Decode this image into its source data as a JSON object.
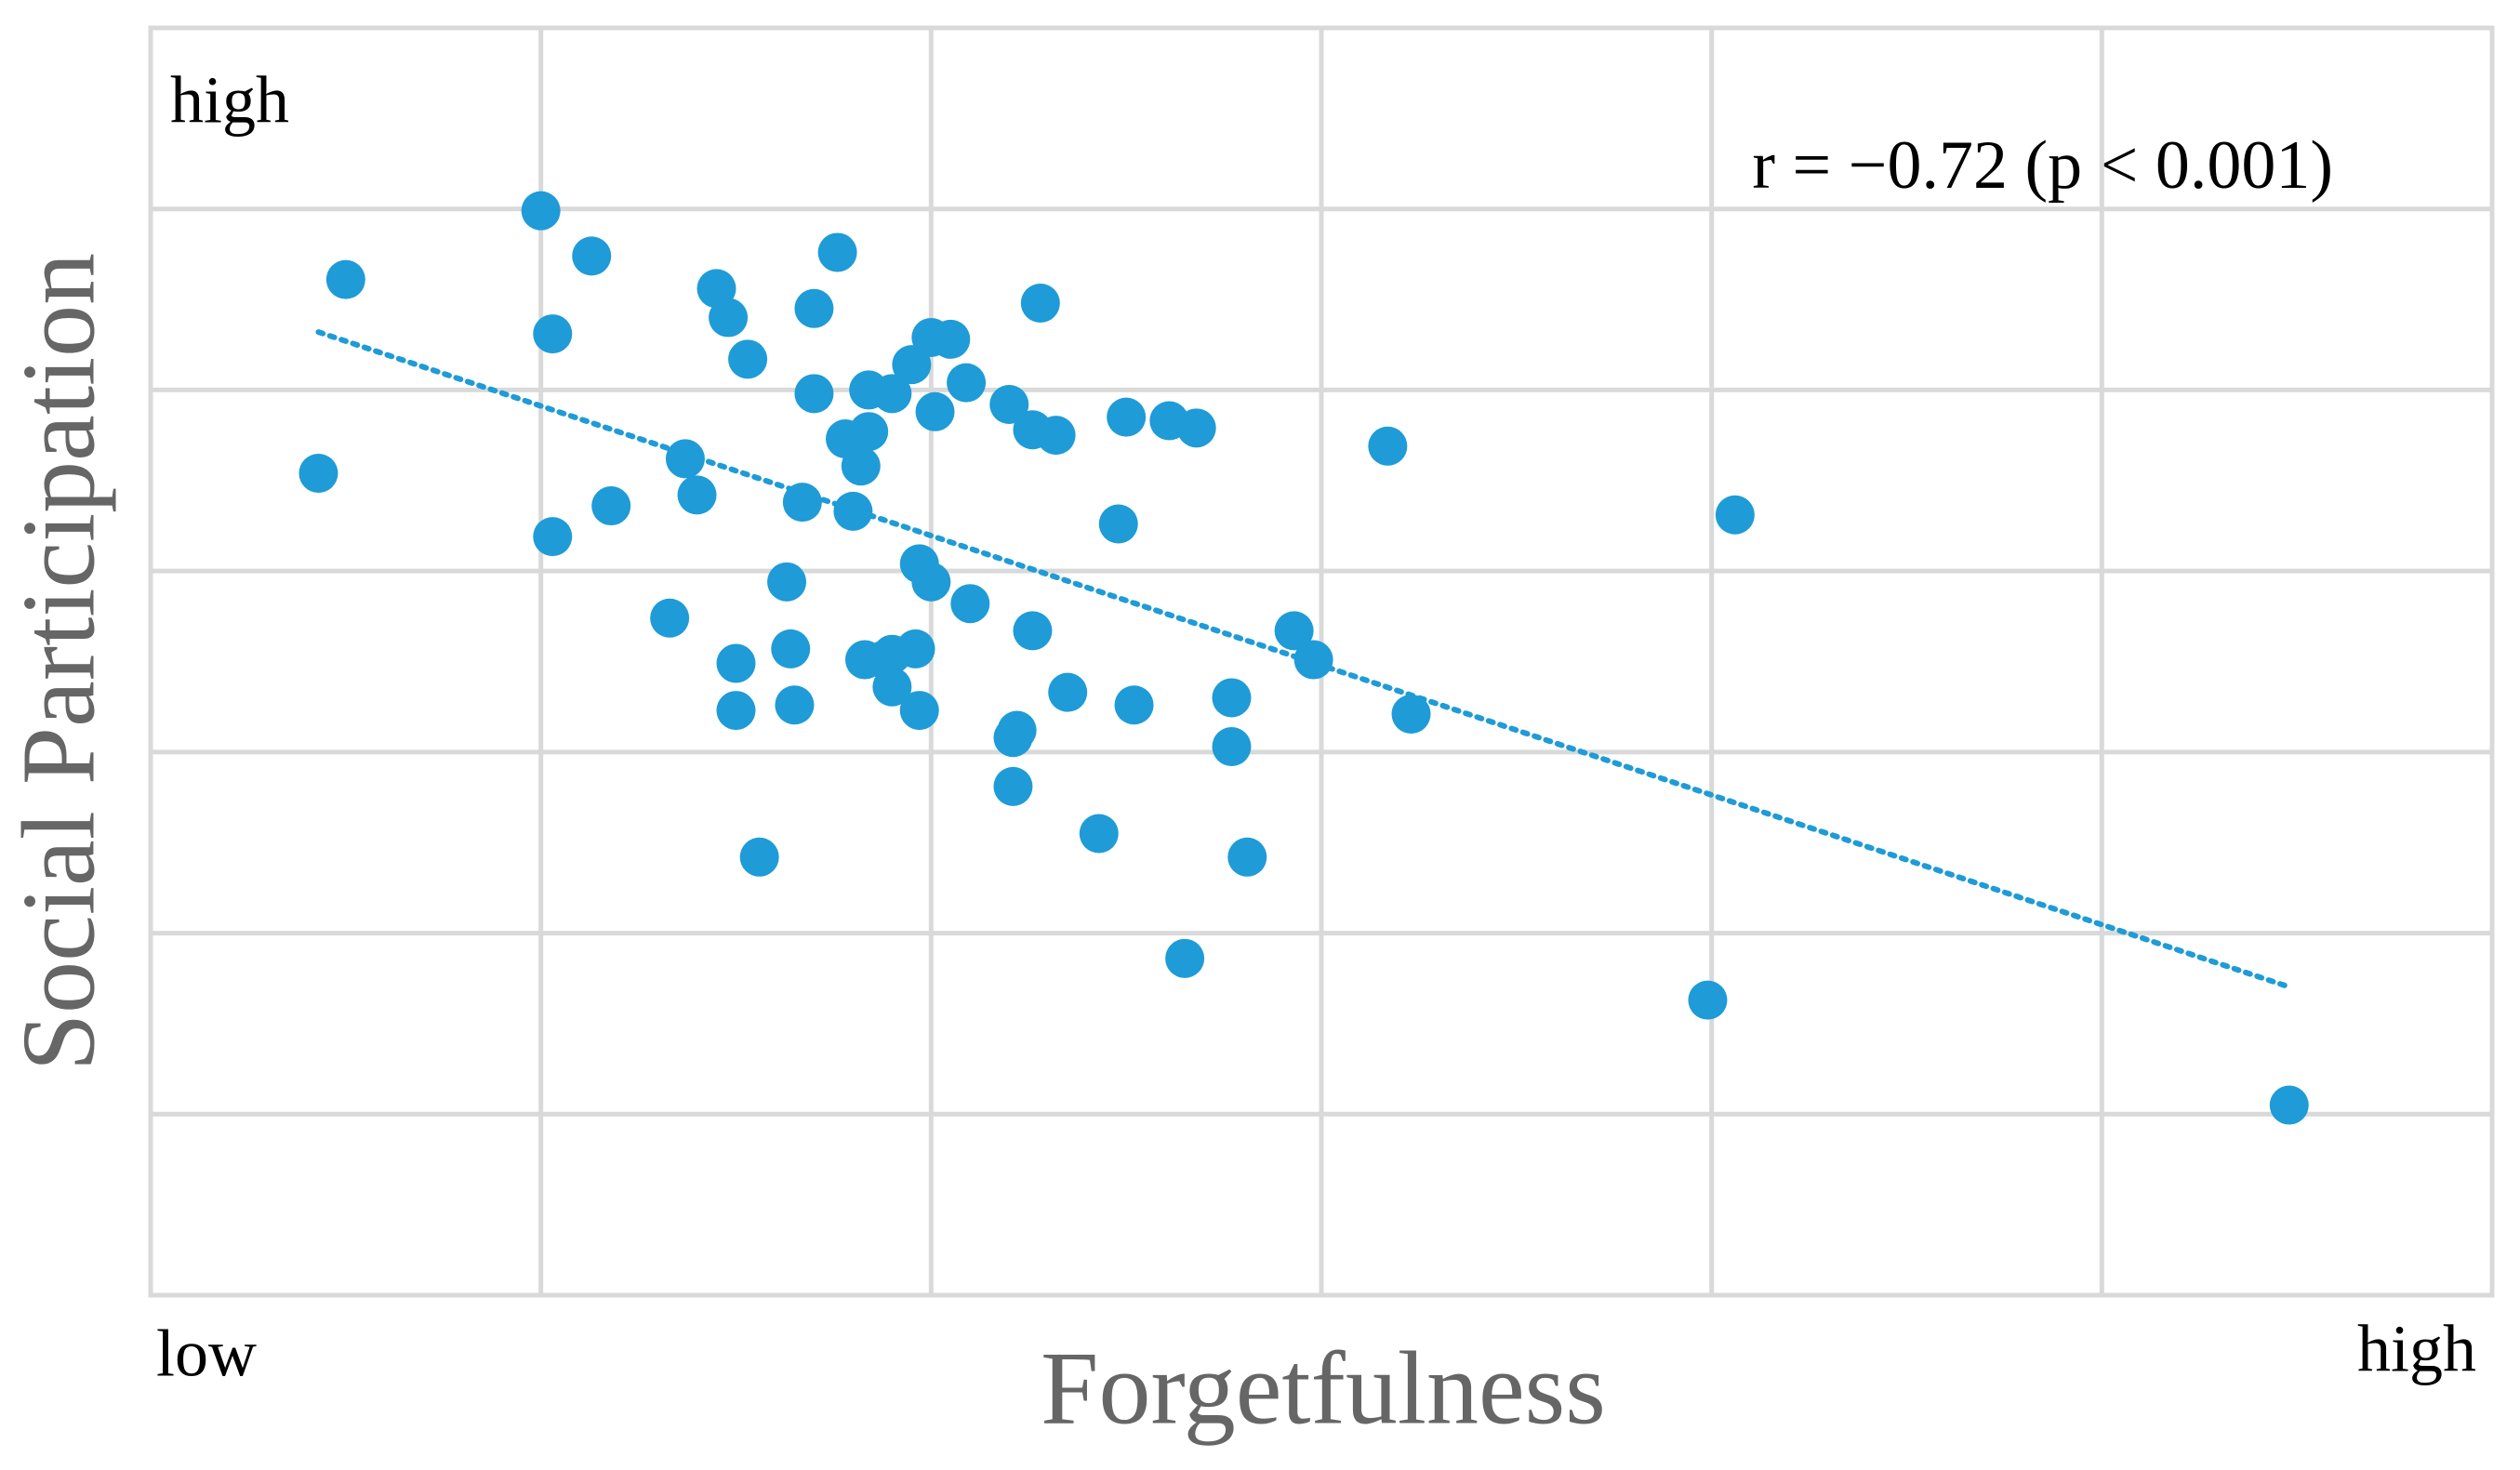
{
  "chart_data": {
    "type": "scatter",
    "x_label": "Forgetfulness",
    "y_label": "Social Participation",
    "x_low_label": "low",
    "x_high_label": "high",
    "y_high_label": "high",
    "annotation": "r = −0.72 (p < 0.001)",
    "color": "#1f9bd7",
    "grid": true,
    "xlim": [
      0,
      6
    ],
    "ylim": [
      0,
      7
    ],
    "xticks": [
      1,
      2,
      3,
      4,
      5
    ],
    "yticks": [
      1,
      2,
      3,
      4,
      5,
      6
    ],
    "x": [
      0.5,
      0.43,
      1.0,
      1.13,
      1.03,
      1.03,
      1.18,
      1.37,
      1.4,
      1.33,
      1.45,
      1.48,
      1.53,
      1.5,
      1.5,
      1.56,
      1.63,
      1.64,
      1.65,
      1.67,
      1.7,
      1.7,
      1.76,
      1.78,
      1.8,
      1.82,
      1.84,
      1.84,
      1.9,
      1.83,
      1.88,
      1.9,
      1.9,
      1.96,
      1.97,
      1.95,
      2.0,
      2.05,
      1.97,
      2.0,
      2.01,
      2.09,
      2.1,
      2.2,
      2.21,
      2.22,
      2.21,
      2.26,
      2.32,
      2.28,
      2.26,
      2.35,
      2.43,
      2.48,
      2.5,
      2.52,
      2.61,
      2.68,
      2.65,
      2.77,
      2.77,
      2.81,
      2.93,
      2.98,
      3.17,
      3.23,
      4.06,
      3.99,
      5.48
    ],
    "values": [
      5.61,
      4.54,
      5.99,
      5.74,
      5.31,
      4.19,
      4.36,
      4.62,
      4.42,
      3.74,
      5.56,
      5.4,
      5.17,
      3.49,
      3.23,
      2.42,
      3.94,
      3.57,
      3.26,
      4.38,
      5.45,
      4.98,
      5.76,
      4.73,
      4.33,
      4.58,
      5.0,
      4.77,
      4.98,
      3.51,
      3.51,
      3.54,
      3.36,
      3.57,
      3.23,
      5.14,
      5.29,
      5.28,
      4.04,
      3.94,
      4.88,
      5.04,
      3.82,
      4.92,
      3.08,
      3.12,
      2.81,
      4.78,
      4.75,
      5.48,
      3.67,
      3.33,
      2.55,
      4.26,
      4.85,
      3.26,
      4.83,
      4.79,
      1.86,
      3.3,
      3.03,
      2.42,
      3.67,
      3.51,
      4.69,
      3.21,
      4.31,
      1.63,
      1.05
    ],
    "trendline": {
      "x": [
        0.43,
        5.47
      ],
      "y": [
        5.32,
        1.71
      ]
    }
  }
}
